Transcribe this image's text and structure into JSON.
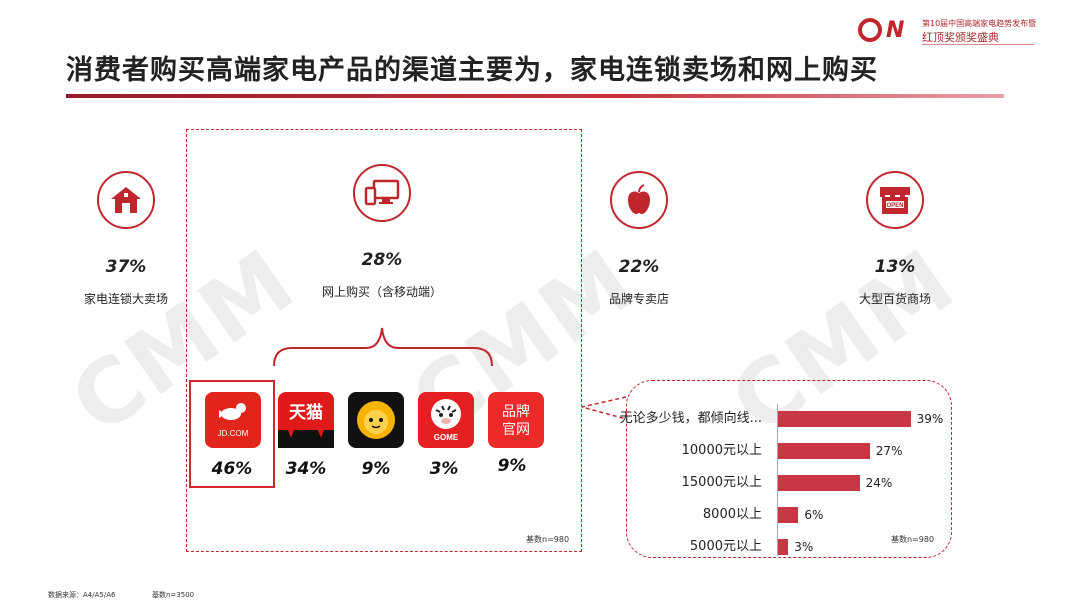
{
  "header": {
    "title": "消费者购买高端家电产品的渠道主要为，家电连锁卖场和网上购买",
    "logo_line1": "第10届中国高端家电趋势发布暨",
    "logo_line2": "红顶奖颁奖盛典"
  },
  "watermark": "CMM",
  "chart_data": [
    {
      "type": "bar",
      "title": "",
      "categories": [
        "家电连锁大卖场",
        "网上购买（含移动端）",
        "品牌专卖店",
        "大型百货商场"
      ],
      "values": [
        37,
        28,
        22,
        13
      ],
      "value_labels": [
        "37%",
        "28%",
        "22%",
        "13%"
      ],
      "icons": [
        "home-icon",
        "computer-icon",
        "apple-icon",
        "shop-icon"
      ]
    },
    {
      "type": "bar",
      "title": "",
      "categories": [
        "JD.COM",
        "天猫",
        "苏宁",
        "GOME",
        "品牌官网"
      ],
      "values": [
        46,
        34,
        9,
        3,
        9
      ],
      "value_labels": [
        "46%",
        "34%",
        "9%",
        "3%",
        "9%"
      ],
      "app_texts": {
        "jd": "JD.COM",
        "tmall": "天猫",
        "gome": "GOME",
        "official": [
          "品牌",
          "官网"
        ]
      },
      "base": "基数n=980"
    },
    {
      "type": "bar",
      "orientation": "horizontal",
      "categories": [
        "无论多少钱，都倾向线...",
        "10000元以上",
        "15000元以上",
        "8000以上",
        "5000元以上"
      ],
      "values": [
        39,
        27,
        24,
        6,
        3
      ],
      "value_labels": [
        "39%",
        "27%",
        "24%",
        "6%",
        "3%"
      ],
      "xlim": [
        0,
        40
      ],
      "bar_color": "#c93744",
      "base": "基数n=980"
    }
  ],
  "footer": {
    "source": "数据来源：A4/A5/A6",
    "base": "基数n=3500"
  },
  "colors": {
    "accent": "#c0272d"
  }
}
